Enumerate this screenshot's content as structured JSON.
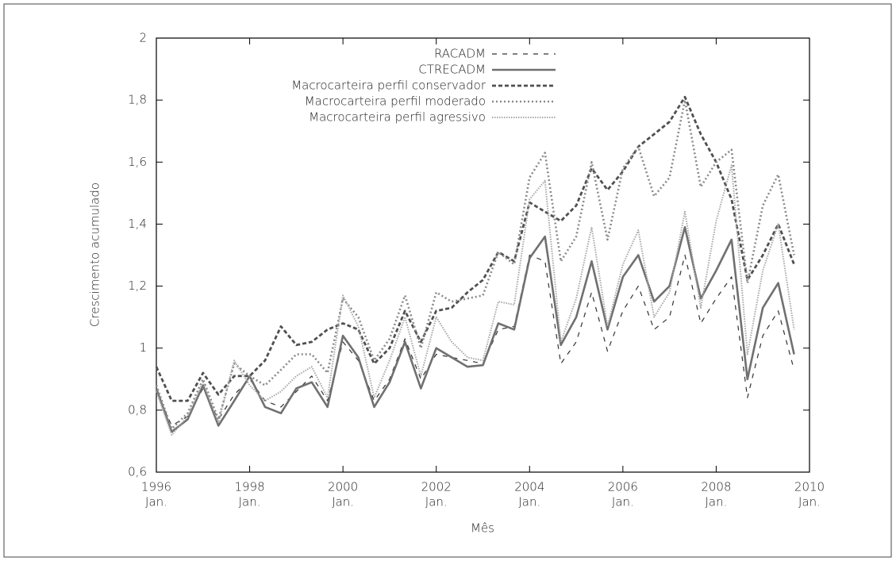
{
  "chart_data": {
    "type": "line",
    "xlabel": "Mês",
    "ylabel": "Crescimento acumulado",
    "x": [
      1996,
      1996.33,
      1996.67,
      1997,
      1997.33,
      1997.67,
      1998,
      1998.33,
      1998.67,
      1999,
      1999.33,
      1999.67,
      2000,
      2000.33,
      2000.67,
      2001,
      2001.33,
      2001.67,
      2002,
      2002.33,
      2002.67,
      2003,
      2003.33,
      2003.67,
      2004,
      2004.33,
      2004.67,
      2005,
      2005.33,
      2005.67,
      2006,
      2006.33,
      2006.67,
      2007,
      2007.33,
      2007.67,
      2008,
      2008.33,
      2008.67,
      2009,
      2009.33,
      2009.67
    ],
    "xlim": [
      1996,
      2010
    ],
    "xticks": [
      1996,
      1998,
      2000,
      2002,
      2004,
      2006,
      2008,
      2010
    ],
    "xtick_month": "Jan.",
    "ylim": [
      0.6,
      2
    ],
    "yticks": [
      {
        "value": 0.6,
        "label": "0,6"
      },
      {
        "value": 0.8,
        "label": "0,8"
      },
      1,
      {
        "value": 1.2,
        "label": "1,2"
      },
      {
        "value": 1.4,
        "label": "1,4"
      },
      {
        "value": 1.6,
        "label": "1,6"
      },
      {
        "value": 1.8,
        "label": "1,8"
      },
      2
    ],
    "grid": false,
    "legend": "top",
    "series": [
      {
        "name": "RACADM",
        "color": "#333333",
        "values": [
          0.86,
          0.75,
          0.78,
          0.87,
          0.77,
          0.85,
          0.9,
          0.83,
          0.81,
          0.86,
          0.91,
          0.83,
          1.02,
          0.96,
          0.83,
          0.9,
          1.03,
          0.9,
          0.98,
          0.97,
          0.96,
          0.95,
          1.06,
          1.07,
          1.3,
          1.28,
          0.95,
          1.02,
          1.18,
          0.99,
          1.12,
          1.2,
          1.06,
          1.1,
          1.3,
          1.08,
          1.16,
          1.23,
          0.84,
          1.04,
          1.12,
          0.93
        ]
      },
      {
        "name": "CTRECADM",
        "color": "#707070",
        "values": [
          0.87,
          0.73,
          0.77,
          0.88,
          0.75,
          0.83,
          0.91,
          0.81,
          0.79,
          0.87,
          0.89,
          0.81,
          1.04,
          0.97,
          0.81,
          0.89,
          1.02,
          0.87,
          1.0,
          0.97,
          0.94,
          0.945,
          1.08,
          1.06,
          1.29,
          1.36,
          1.01,
          1.1,
          1.28,
          1.06,
          1.23,
          1.3,
          1.15,
          1.2,
          1.39,
          1.16,
          1.25,
          1.35,
          0.9,
          1.13,
          1.21,
          0.98
        ]
      },
      {
        "name": "Macrocarteira perfil conservador",
        "color": "#505050",
        "values": [
          0.94,
          0.83,
          0.83,
          0.92,
          0.85,
          0.91,
          0.91,
          0.96,
          1.07,
          1.01,
          1.02,
          1.06,
          1.08,
          1.06,
          0.95,
          1.0,
          1.12,
          1.02,
          1.12,
          1.13,
          1.18,
          1.22,
          1.31,
          1.28,
          1.47,
          1.44,
          1.41,
          1.46,
          1.58,
          1.51,
          1.57,
          1.65,
          1.69,
          1.73,
          1.81,
          1.69,
          1.6,
          1.48,
          1.22,
          1.3,
          1.4,
          1.27
        ]
      },
      {
        "name": "Macrocarteira perfil moderado",
        "color": "#8a8a8a",
        "values": [
          0.88,
          0.74,
          0.79,
          0.9,
          0.77,
          0.95,
          0.91,
          0.88,
          0.93,
          0.98,
          0.98,
          0.92,
          1.16,
          1.1,
          0.96,
          1.03,
          1.17,
          1.0,
          1.18,
          1.15,
          1.16,
          1.17,
          1.31,
          1.27,
          1.55,
          1.63,
          1.28,
          1.36,
          1.6,
          1.35,
          1.58,
          1.65,
          1.49,
          1.55,
          1.8,
          1.52,
          1.6,
          1.64,
          1.21,
          1.46,
          1.56,
          1.3
        ]
      },
      {
        "name": "Macrocarteira perfil agressivo",
        "color": "#a8a8a8",
        "values": [
          0.86,
          0.72,
          0.78,
          0.89,
          0.76,
          0.96,
          0.88,
          0.83,
          0.86,
          0.91,
          0.94,
          0.84,
          1.17,
          1.07,
          0.84,
          0.96,
          1.1,
          0.91,
          1.1,
          1.02,
          0.97,
          0.96,
          1.15,
          1.14,
          1.48,
          1.54,
          1.02,
          1.16,
          1.39,
          1.07,
          1.27,
          1.38,
          1.1,
          1.18,
          1.44,
          1.13,
          1.41,
          1.59,
          0.98,
          1.25,
          1.4,
          1.06
        ]
      }
    ]
  }
}
